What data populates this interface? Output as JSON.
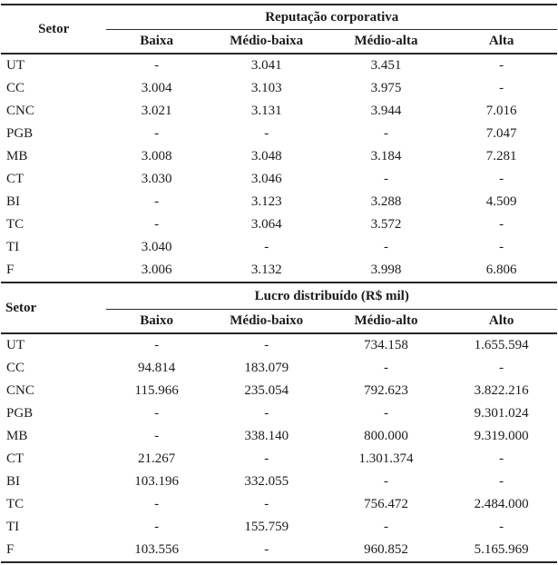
{
  "page": {
    "background": "#ffffff",
    "text_color": "#1b1b1b",
    "rule_color": "#262626"
  },
  "tables": [
    {
      "row_header_label": "Setor",
      "group_header": "Reputação corporativa",
      "columns": [
        "Baixa",
        "Médio-baixa",
        "Médio-alta",
        "Alta"
      ],
      "rows": [
        {
          "setor": "UT",
          "values": [
            "-",
            "3.041",
            "3.451",
            "-"
          ]
        },
        {
          "setor": "CC",
          "values": [
            "3.004",
            "3.103",
            "3.975",
            "-"
          ]
        },
        {
          "setor": "CNC",
          "values": [
            "3.021",
            "3.131",
            "3.944",
            "7.016"
          ]
        },
        {
          "setor": "PGB",
          "values": [
            "-",
            "-",
            "-",
            "7.047"
          ]
        },
        {
          "setor": "MB",
          "values": [
            "3.008",
            "3.048",
            "3.184",
            "7.281"
          ]
        },
        {
          "setor": "CT",
          "values": [
            "3.030",
            "3.046",
            "-",
            "-"
          ]
        },
        {
          "setor": "BI",
          "values": [
            "-",
            "3.123",
            "3.288",
            "4.509"
          ]
        },
        {
          "setor": "TC",
          "values": [
            "-",
            "3.064",
            "3.572",
            "-"
          ]
        },
        {
          "setor": "TI",
          "values": [
            "3.040",
            "-",
            "-",
            "-"
          ]
        },
        {
          "setor": "F",
          "values": [
            "3.006",
            "3.132",
            "3.998",
            "6.806"
          ]
        }
      ]
    },
    {
      "row_header_label": "Setor",
      "group_header": "Lucro distribuído (R$ mil)",
      "columns": [
        "Baixo",
        "Médio-baixo",
        "Médio-alto",
        "Alto"
      ],
      "rows": [
        {
          "setor": "UT",
          "values": [
            "-",
            "-",
            "734.158",
            "1.655.594"
          ]
        },
        {
          "setor": "CC",
          "values": [
            "94.814",
            "183.079",
            "-",
            "-"
          ]
        },
        {
          "setor": "CNC",
          "values": [
            "115.966",
            "235.054",
            "792.623",
            "3.822.216"
          ]
        },
        {
          "setor": "PGB",
          "values": [
            "-",
            "-",
            "-",
            "9.301.024"
          ]
        },
        {
          "setor": "MB",
          "values": [
            "-",
            "338.140",
            "800.000",
            "9.319.000"
          ]
        },
        {
          "setor": "CT",
          "values": [
            "21.267",
            "-",
            "1.301.374",
            "-"
          ]
        },
        {
          "setor": "BI",
          "values": [
            "103.196",
            "332.055",
            "-",
            "-"
          ]
        },
        {
          "setor": "TC",
          "values": [
            "-",
            "-",
            "756.472",
            "2.484.000"
          ]
        },
        {
          "setor": "TI",
          "values": [
            "-",
            "155.759",
            "-",
            "-"
          ]
        },
        {
          "setor": "F",
          "values": [
            "103.556",
            "-",
            "960.852",
            "5.165.969"
          ]
        }
      ]
    }
  ]
}
